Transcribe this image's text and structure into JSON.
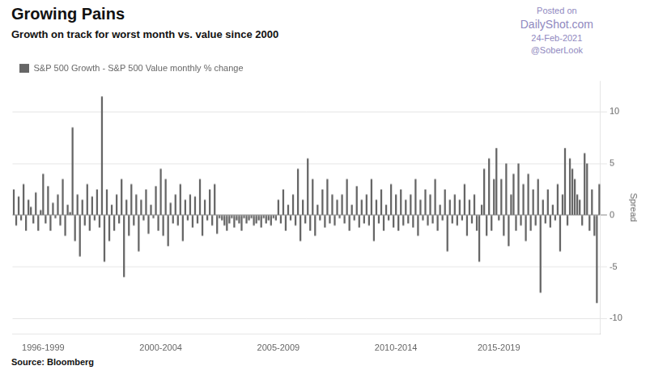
{
  "chart_data": {
    "type": "bar",
    "title": "Growing Pains",
    "subtitle": "Growth on track for worst month vs. value since 2000",
    "y_label": "Spread",
    "source": "Source: Bloomberg",
    "annotations": [
      "Posted on",
      "DailyShot.com",
      "24-Feb-2021",
      "@SoberLook"
    ],
    "categories": [
      null,
      null,
      null,
      null,
      null,
      null,
      null,
      null,
      null,
      null,
      null,
      null,
      "1996-1999",
      null,
      null,
      null,
      null,
      null,
      null,
      null,
      null,
      null,
      null,
      null,
      null,
      null,
      null,
      null,
      null,
      null,
      null,
      null,
      null,
      null,
      null,
      null,
      null,
      null,
      null,
      null,
      null,
      null,
      null,
      null,
      null,
      null,
      null,
      null,
      null,
      null,
      null,
      null,
      null,
      null,
      null,
      null,
      null,
      null,
      null,
      null,
      "2000-2004",
      null,
      null,
      null,
      null,
      null,
      null,
      null,
      null,
      null,
      null,
      null,
      null,
      null,
      null,
      null,
      null,
      null,
      null,
      null,
      null,
      null,
      null,
      null,
      null,
      null,
      null,
      null,
      null,
      null,
      null,
      null,
      null,
      null,
      null,
      null,
      null,
      null,
      null,
      null,
      null,
      null,
      null,
      null,
      null,
      null,
      null,
      null,
      "2005-2009",
      null,
      null,
      null,
      null,
      null,
      null,
      null,
      null,
      null,
      null,
      null,
      null,
      null,
      null,
      null,
      null,
      null,
      null,
      null,
      null,
      null,
      null,
      null,
      null,
      null,
      null,
      null,
      null,
      null,
      null,
      null,
      null,
      null,
      null,
      null,
      null,
      null,
      null,
      null,
      null,
      null,
      null,
      null,
      null,
      null,
      null,
      null,
      "2010-2014",
      null,
      null,
      null,
      null,
      null,
      null,
      null,
      null,
      null,
      null,
      null,
      null,
      null,
      null,
      null,
      null,
      null,
      null,
      null,
      null,
      null,
      null,
      null,
      null,
      null,
      null,
      null,
      null,
      null,
      null,
      null,
      null,
      null,
      null,
      null,
      null,
      null,
      null,
      null,
      null,
      null,
      "2015-2019",
      null,
      null,
      null,
      null,
      null,
      null,
      null,
      null,
      null,
      null,
      null,
      null,
      null,
      null,
      null,
      null,
      null,
      null,
      null,
      null,
      null,
      null,
      null,
      null,
      null,
      null,
      null,
      null,
      null,
      null,
      null,
      null,
      null,
      null,
      null,
      null,
      null,
      null,
      null,
      null,
      null
    ],
    "series": [
      {
        "name": "S&P 500 Growth - S&P 500 Value monthly % change",
        "color": "#666666",
        "values": [
          2.5,
          -1.0,
          1.8,
          -0.5,
          3.0,
          -1.5,
          1.5,
          0.8,
          -0.8,
          2.2,
          -1.5,
          0.5,
          4.0,
          -0.8,
          2.8,
          -1.5,
          1.2,
          -0.3,
          2.0,
          -1.0,
          3.5,
          -2.0,
          1.0,
          0.3,
          8.5,
          -2.5,
          2.0,
          -4.0,
          1.5,
          -1.0,
          3.0,
          -1.5,
          1.8,
          -0.5,
          2.5,
          -1.2,
          11.5,
          -4.5,
          2.5,
          -2.5,
          1.0,
          -1.5,
          2.0,
          -0.8,
          3.5,
          -6.0,
          1.5,
          -2.0,
          3.0,
          -1.0,
          2.0,
          -3.5,
          1.5,
          -0.5,
          2.5,
          -1.8,
          1.0,
          -0.3,
          2.8,
          -1.5,
          4.5,
          -2.0,
          3.5,
          -3.0,
          1.2,
          -0.8,
          2.0,
          -1.0,
          3.0,
          -2.5,
          1.5,
          -0.5,
          2.0,
          -1.2,
          1.8,
          -0.8,
          3.5,
          -2.0,
          1.5,
          -0.5,
          2.5,
          -1.0,
          3.0,
          -1.8,
          -0.3,
          -0.5,
          -1.0,
          -1.5,
          -0.8,
          -0.3,
          -1.2,
          -0.5,
          -0.8,
          -1.5,
          -0.3,
          -0.8,
          -0.5,
          -0.3,
          -1.0,
          -0.8,
          -0.5,
          -1.2,
          -0.3,
          -0.8,
          -0.5,
          -1.0,
          -0.3,
          -0.5,
          1.5,
          -0.8,
          2.5,
          -1.5,
          1.0,
          -0.5,
          2.0,
          -1.0,
          4.5,
          -2.5,
          1.5,
          -0.8,
          5.5,
          -1.5,
          3.5,
          -2.0,
          1.0,
          -0.5,
          2.5,
          -1.2,
          3.5,
          -0.8,
          2.0,
          -1.0,
          1.5,
          -0.3,
          2.0,
          -0.8,
          3.5,
          -1.5,
          1.0,
          -0.5,
          2.8,
          -1.2,
          1.5,
          -0.8,
          2.0,
          -1.0,
          3.5,
          -2.5,
          1.5,
          -0.8,
          2.5,
          -1.5,
          1.0,
          -0.5,
          3.0,
          -1.2,
          2.0,
          -1.5,
          2.5,
          -1.0,
          1.5,
          -0.8,
          2.0,
          -1.2,
          3.5,
          -2.0,
          1.5,
          -0.5,
          2.5,
          -1.0,
          2.0,
          -0.8,
          3.5,
          -1.5,
          1.0,
          -0.5,
          2.5,
          -3.5,
          1.5,
          -0.8,
          2.0,
          -1.0,
          1.5,
          -0.5,
          3.0,
          -2.0,
          1.5,
          -0.8,
          2.0,
          -1.5,
          -4.5,
          1.0,
          4.5,
          -2.0,
          5.5,
          -1.5,
          3.5,
          6.5,
          -0.5,
          3.5,
          -2.0,
          5.0,
          -3.0,
          2.0,
          4.0,
          -1.5,
          5.0,
          -1.0,
          3.0,
          -2.5,
          4.0,
          -1.5,
          2.5,
          -1.0,
          3.5,
          -7.5,
          1.5,
          -0.8,
          2.5,
          -1.2,
          1.0,
          -0.5,
          3.0,
          -3.5,
          2.0,
          6.5,
          -1.0,
          5.5,
          4.5,
          3.5,
          2.0,
          1.5,
          -1.0,
          6.0,
          5.0,
          -1.5,
          2.5,
          -2.0,
          -8.5,
          3.0
        ]
      }
    ],
    "ylim": [
      -11.5,
      13
    ],
    "yticks": [
      -10,
      -5,
      0,
      5,
      10
    ],
    "grid": true,
    "legend": "upper left"
  }
}
